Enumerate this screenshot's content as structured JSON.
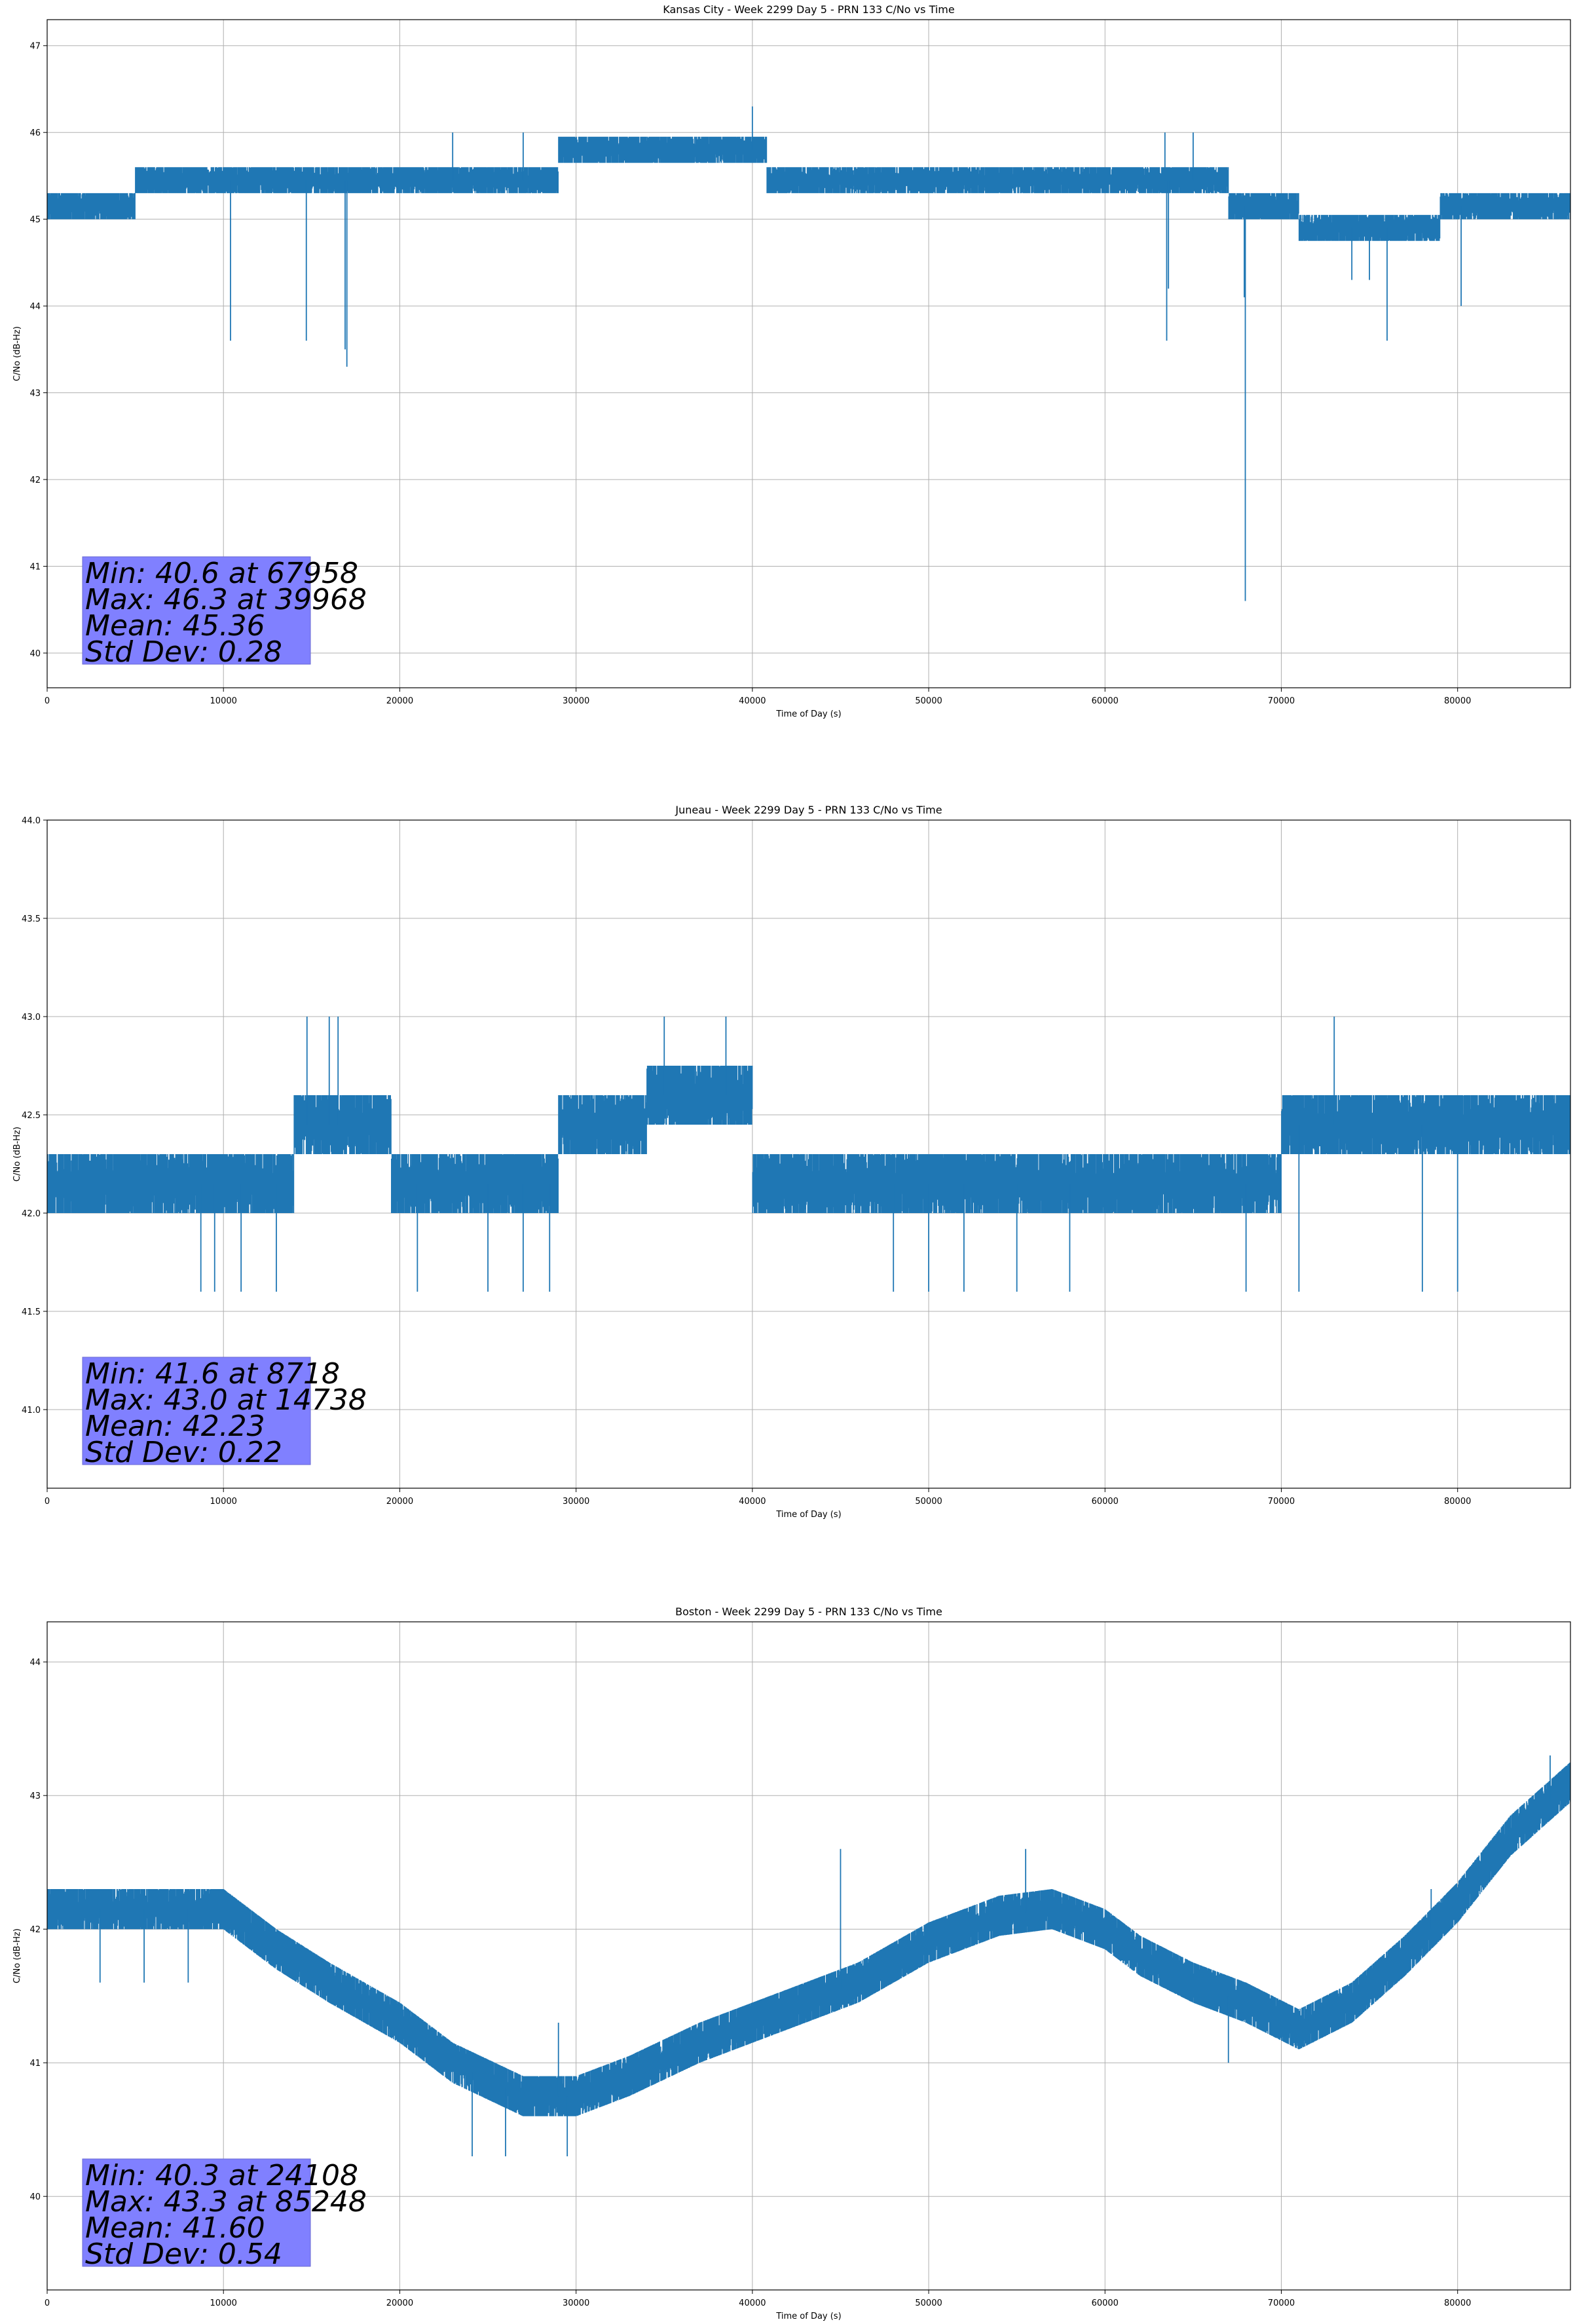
{
  "chart_data": [
    {
      "type": "line",
      "title": "Kansas City - Week 2299 Day 5 - PRN 133 C/No vs Time",
      "xlabel": "Time of Day (s)",
      "ylabel": "C/No (dB-Hz)",
      "xlim": [
        0,
        86400
      ],
      "ylim": [
        39.6,
        47.3
      ],
      "xticks": [
        0,
        10000,
        20000,
        30000,
        40000,
        50000,
        60000,
        70000,
        80000
      ],
      "yticks": [
        40,
        41,
        42,
        43,
        44,
        45,
        46,
        47
      ],
      "grid": true,
      "color": "#1f77b4",
      "stats": [
        "Min: 40.6 at 67958",
        "Max: 46.3 at 39968",
        "Mean: 45.36",
        "Std Dev: 0.28"
      ],
      "series": [
        {
          "x": [
            0,
            5000,
            5001,
            10000,
            10001,
            20000,
            29000,
            29001,
            39000,
            40800,
            40801,
            50000,
            55000,
            60000,
            67000,
            67001,
            70000,
            71000,
            71001,
            79000,
            79001,
            86400
          ],
          "y": [
            45.15,
            45.15,
            45.45,
            45.45,
            45.45,
            45.45,
            45.45,
            45.8,
            45.8,
            45.8,
            45.45,
            45.45,
            45.45,
            45.45,
            45.45,
            45.15,
            45.15,
            45.15,
            44.9,
            44.9,
            45.15,
            45.15
          ],
          "band": 0.3,
          "spikes": [
            [
              10400,
              43.6
            ],
            [
              14700,
              43.6
            ],
            [
              17000,
              43.3
            ],
            [
              16900,
              43.5
            ],
            [
              40000,
              46.3
            ],
            [
              63500,
              43.6
            ],
            [
              63600,
              44.2
            ],
            [
              67958,
              40.6
            ],
            [
              67900,
              44.1
            ],
            [
              76000,
              43.6
            ],
            [
              80200,
              44.0
            ],
            [
              74000,
              44.3
            ],
            [
              75000,
              44.3
            ],
            [
              27000,
              46.0
            ],
            [
              23000,
              46.0
            ],
            [
              63400,
              46.0
            ],
            [
              65000,
              46.0
            ]
          ]
        }
      ]
    },
    {
      "type": "line",
      "title": "Juneau - Week 2299 Day 5 - PRN 133 C/No vs Time",
      "xlabel": "Time of Day (s)",
      "ylabel": "C/No (dB-Hz)",
      "xlim": [
        0,
        86400
      ],
      "ylim": [
        40.6,
        44.0
      ],
      "xticks": [
        0,
        10000,
        20000,
        30000,
        40000,
        50000,
        60000,
        70000,
        80000
      ],
      "yticks": [
        41.0,
        41.5,
        42.0,
        42.5,
        43.0,
        43.5,
        44.0
      ],
      "ytick_labels": [
        "41.0",
        "41.5",
        "42.0",
        "42.5",
        "43.0",
        "43.5",
        "44.0"
      ],
      "grid": true,
      "color": "#1f77b4",
      "stats": [
        "Min: 41.6 at 8718",
        "Max: 43.0 at 14738",
        "Mean: 42.23",
        "Std Dev: 0.22"
      ],
      "series": [
        {
          "x": [
            0,
            8700,
            14000,
            14001,
            19500,
            19501,
            29000,
            29001,
            34000,
            34001,
            40000,
            40001,
            60000,
            70000,
            70001,
            80000,
            80001,
            86400
          ],
          "y": [
            42.15,
            42.15,
            42.15,
            42.45,
            42.45,
            42.15,
            42.15,
            42.45,
            42.45,
            42.6,
            42.6,
            42.15,
            42.15,
            42.15,
            42.45,
            42.45,
            42.45,
            42.45
          ],
          "band": 0.3,
          "spikes": [
            [
              8718,
              41.6
            ],
            [
              9500,
              41.6
            ],
            [
              11000,
              41.6
            ],
            [
              13000,
              41.6
            ],
            [
              14738,
              43.0
            ],
            [
              16000,
              43.0
            ],
            [
              16500,
              43.0
            ],
            [
              21000,
              41.6
            ],
            [
              25000,
              41.6
            ],
            [
              27000,
              41.6
            ],
            [
              28500,
              41.6
            ],
            [
              35000,
              43.0
            ],
            [
              38500,
              43.0
            ],
            [
              48000,
              41.6
            ],
            [
              50000,
              41.6
            ],
            [
              52000,
              41.6
            ],
            [
              55000,
              41.6
            ],
            [
              58000,
              41.6
            ],
            [
              68000,
              41.6
            ],
            [
              71000,
              41.6
            ],
            [
              73000,
              43.0
            ],
            [
              80000,
              41.6
            ],
            [
              78000,
              41.6
            ]
          ]
        }
      ]
    },
    {
      "type": "line",
      "title": "Boston - Week 2299 Day 5 - PRN 133 C/No vs Time",
      "xlabel": "Time of Day (s)",
      "ylabel": "C/No (dB-Hz)",
      "xlim": [
        0,
        86400
      ],
      "ylim": [
        39.3,
        44.3
      ],
      "xticks": [
        0,
        10000,
        20000,
        30000,
        40000,
        50000,
        60000,
        70000,
        80000
      ],
      "yticks": [
        40,
        41,
        42,
        43,
        44
      ],
      "grid": true,
      "color": "#1f77b4",
      "stats": [
        "Min: 40.3 at 24108",
        "Max: 43.3 at 85248",
        "Mean: 41.60",
        "Std Dev: 0.54"
      ],
      "series": [
        {
          "x": [
            0,
            5000,
            10000,
            13000,
            16000,
            20000,
            23000,
            27000,
            30000,
            33000,
            37000,
            40000,
            43000,
            46000,
            50000,
            54000,
            57000,
            60000,
            62000,
            65000,
            68000,
            71000,
            74000,
            77000,
            80000,
            83000,
            86400
          ],
          "y": [
            42.15,
            42.15,
            42.15,
            41.85,
            41.6,
            41.3,
            41.0,
            40.75,
            40.75,
            40.9,
            41.15,
            41.3,
            41.45,
            41.6,
            41.9,
            42.1,
            42.15,
            42.0,
            41.8,
            41.6,
            41.45,
            41.25,
            41.45,
            41.8,
            42.2,
            42.7,
            43.1
          ],
          "band": 0.3,
          "spikes": [
            [
              24108,
              40.3
            ],
            [
              26000,
              40.3
            ],
            [
              29500,
              40.3
            ],
            [
              29000,
              41.3
            ],
            [
              45000,
              42.6
            ],
            [
              55500,
              42.6
            ],
            [
              67000,
              41.0
            ],
            [
              78500,
              42.3
            ],
            [
              3000,
              41.6
            ],
            [
              5500,
              41.6
            ],
            [
              8000,
              41.6
            ],
            [
              85248,
              43.3
            ]
          ]
        }
      ]
    }
  ]
}
